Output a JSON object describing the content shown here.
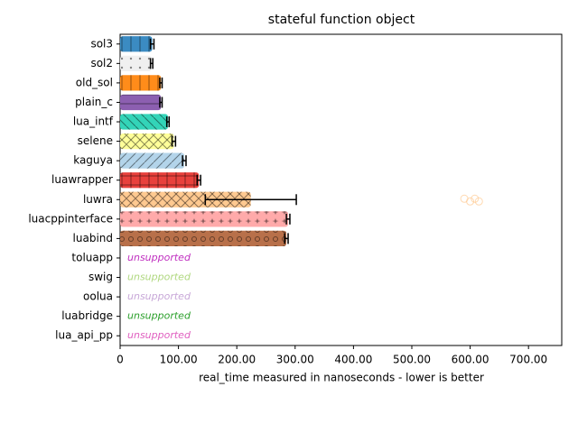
{
  "chart_data": {
    "type": "bar",
    "orientation": "horizontal",
    "title": "stateful function object",
    "xlabel": "real_time measured in nanoseconds - lower is better",
    "categories": [
      "sol3",
      "sol2",
      "old_sol",
      "plain_c",
      "lua_intf",
      "selene",
      "kaguya",
      "luawrapper",
      "luwra",
      "luacppinterface",
      "luabind",
      "toluapp",
      "swig",
      "oolua",
      "luabridge",
      "lua_api_pp"
    ],
    "values": [
      55,
      54,
      70,
      70,
      82,
      92,
      110,
      135,
      224,
      288,
      285,
      null,
      null,
      null,
      null,
      null
    ],
    "errors": [
      3,
      2,
      2,
      2,
      2,
      3,
      3,
      3,
      78,
      3,
      3,
      null,
      null,
      null,
      null,
      null
    ],
    "colors": [
      "#3b8bc2",
      "#f0f0f0",
      "#ff8c1a",
      "#8c5fb0",
      "#33d4b8",
      "#ffff99",
      "#b3d4ea",
      "#e8413c",
      "#ffc990",
      "#ffaaaa",
      "#b8704a",
      "#c030c0",
      "#b0d880",
      "#c8a8d8",
      "#2ca02c",
      "#e060c0"
    ],
    "hatches": [
      "|",
      ".",
      "|",
      "-",
      "\\",
      "x",
      "/",
      "+",
      "x",
      "*",
      "o",
      null,
      null,
      null,
      null,
      null
    ],
    "annotations": [
      null,
      null,
      null,
      null,
      null,
      null,
      null,
      null,
      null,
      null,
      null,
      "unsupported",
      "unsupported",
      "unsupported",
      "unsupported",
      "unsupported"
    ],
    "outliers": [
      {
        "category": 8,
        "x": [
          590,
          600,
          608,
          615
        ]
      }
    ],
    "xlim": [
      0,
      757
    ],
    "xticks": [
      0,
      {
        "value": 100,
        "label": "100.00"
      },
      {
        "value": 200,
        "label": "200.00"
      },
      {
        "value": 300,
        "label": "300.00"
      },
      {
        "value": 400,
        "label": "400.00"
      },
      {
        "value": 500,
        "label": "500.00"
      },
      {
        "value": 600,
        "label": "600.00"
      },
      {
        "value": 700,
        "label": "700.00"
      }
    ]
  }
}
